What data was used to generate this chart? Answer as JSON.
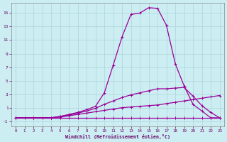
{
  "xlabel": "Windchill (Refroidissement éolien,°C)",
  "xlim": [
    -0.5,
    23.5
  ],
  "ylim": [
    -1.8,
    16.5
  ],
  "xticks": [
    0,
    1,
    2,
    3,
    4,
    5,
    6,
    7,
    8,
    9,
    10,
    11,
    12,
    13,
    14,
    15,
    16,
    17,
    18,
    19,
    20,
    21,
    22,
    23
  ],
  "yticks": [
    -1,
    1,
    3,
    5,
    7,
    9,
    11,
    13,
    15
  ],
  "background_color": "#cceef2",
  "grid_color": "#aad4da",
  "line_color": "#990099",
  "line1_x": [
    0,
    1,
    2,
    3,
    4,
    5,
    6,
    7,
    8,
    9,
    10,
    11,
    12,
    13,
    14,
    15,
    16,
    17,
    18,
    19,
    20,
    21,
    22,
    23
  ],
  "line1_y": [
    -0.5,
    -0.5,
    -0.5,
    -0.5,
    -0.5,
    -0.5,
    -0.5,
    -0.5,
    -0.5,
    -0.5,
    -0.5,
    -0.5,
    -0.5,
    -0.5,
    -0.5,
    -0.5,
    -0.5,
    -0.5,
    -0.5,
    -0.5,
    -0.5,
    -0.5,
    -0.5,
    -0.5
  ],
  "line2_x": [
    0,
    2,
    4,
    5,
    6,
    7,
    8,
    9,
    10,
    11,
    12,
    13,
    14,
    15,
    16,
    17,
    18,
    19,
    20,
    21,
    22,
    23
  ],
  "line2_y": [
    -0.5,
    -0.5,
    -0.5,
    -0.4,
    -0.2,
    0.0,
    0.2,
    0.4,
    0.6,
    0.8,
    1.0,
    1.1,
    1.2,
    1.3,
    1.4,
    1.6,
    1.8,
    2.0,
    2.2,
    2.4,
    2.6,
    2.8
  ],
  "line3_x": [
    0,
    2,
    4,
    5,
    6,
    7,
    8,
    9,
    10,
    11,
    12,
    13,
    14,
    15,
    16,
    17,
    18,
    19,
    20,
    21,
    22,
    23
  ],
  "line3_y": [
    -0.5,
    -0.5,
    -0.5,
    -0.3,
    -0.1,
    0.2,
    0.5,
    0.9,
    1.5,
    2.0,
    2.5,
    2.9,
    3.2,
    3.5,
    3.8,
    3.8,
    3.9,
    4.0,
    2.7,
    1.3,
    0.3,
    -0.5
  ],
  "line4_x": [
    0,
    2,
    4,
    5,
    6,
    7,
    8,
    9,
    10,
    11,
    12,
    13,
    14,
    15,
    16,
    17,
    18,
    19,
    20,
    21,
    22,
    23
  ],
  "line4_y": [
    -0.5,
    -0.5,
    -0.5,
    -0.3,
    0.0,
    0.3,
    0.7,
    1.2,
    3.2,
    7.3,
    11.5,
    14.8,
    15.0,
    15.8,
    15.7,
    13.2,
    7.5,
    4.2,
    1.5,
    0.5,
    -0.5,
    -0.5
  ],
  "marker": "+",
  "markersize": 3,
  "linewidth": 0.9
}
